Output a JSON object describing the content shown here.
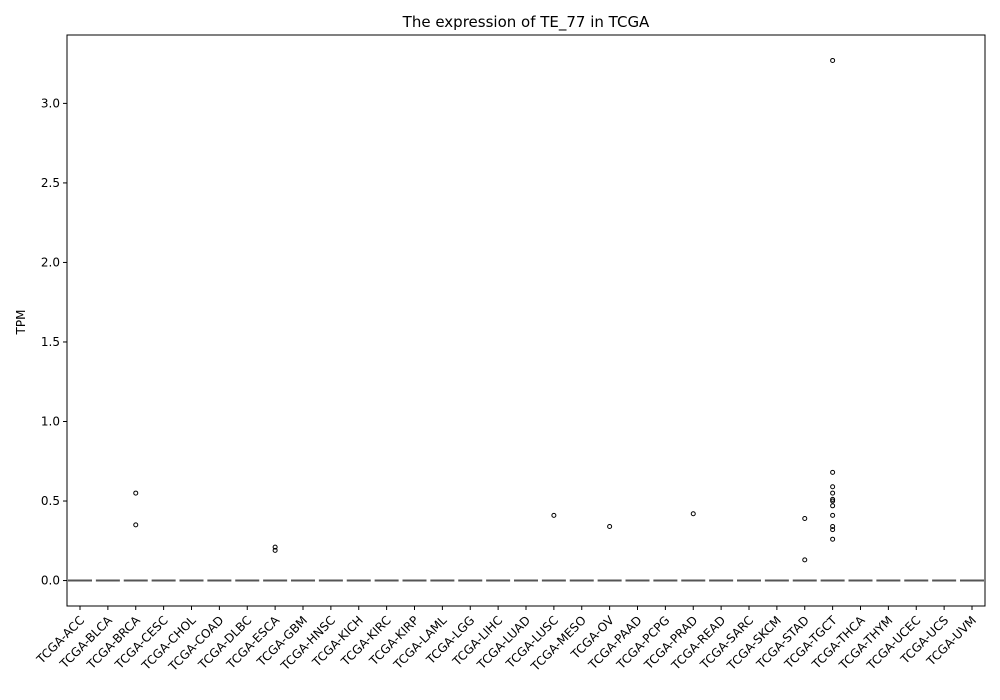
{
  "chart_data": {
    "type": "box",
    "title": "The expression of TE_77 in TCGA",
    "xlabel": "",
    "ylabel": "TPM",
    "ylim": [
      -0.16,
      3.43
    ],
    "yticks": [
      0.0,
      0.5,
      1.0,
      1.5,
      2.0,
      2.5,
      3.0
    ],
    "ytick_labels": [
      "0.0",
      "0.5",
      "1.0",
      "1.5",
      "2.0",
      "2.5",
      "3.0"
    ],
    "grid": false,
    "categories": [
      "TCGA-ACC",
      "TCGA-BLCA",
      "TCGA-BRCA",
      "TCGA-CESC",
      "TCGA-CHOL",
      "TCGA-COAD",
      "TCGA-DLBC",
      "TCGA-ESCA",
      "TCGA-GBM",
      "TCGA-HNSC",
      "TCGA-KICH",
      "TCGA-KIRC",
      "TCGA-KIRP",
      "TCGA-LAML",
      "TCGA-LGG",
      "TCGA-LIHC",
      "TCGA-LUAD",
      "TCGA-LUSC",
      "TCGA-MESO",
      "TCGA-OV",
      "TCGA-PAAD",
      "TCGA-PCPG",
      "TCGA-PRAD",
      "TCGA-READ",
      "TCGA-SARC",
      "TCGA-SKCM",
      "TCGA-STAD",
      "TCGA-TGCT",
      "TCGA-THCA",
      "TCGA-THYM",
      "TCGA-UCEC",
      "TCGA-UCS",
      "TCGA-UVM"
    ],
    "median": [
      0,
      0,
      0,
      0,
      0,
      0,
      0,
      0,
      0,
      0,
      0,
      0,
      0,
      0,
      0,
      0,
      0,
      0,
      0,
      0,
      0,
      0,
      0,
      0,
      0,
      0,
      0,
      0,
      0,
      0,
      0,
      0,
      0
    ],
    "outliers": [
      [],
      [],
      [
        0.55,
        0.35
      ],
      [],
      [],
      [],
      [],
      [
        0.21,
        0.19
      ],
      [],
      [],
      [],
      [],
      [],
      [],
      [],
      [],
      [],
      [
        0.41
      ],
      [],
      [
        0.34
      ],
      [],
      [],
      [
        0.42
      ],
      [],
      [],
      [],
      [
        0.39,
        0.13
      ],
      [
        3.27,
        0.68,
        0.59,
        0.55,
        0.51,
        0.5,
        0.47,
        0.41,
        0.34,
        0.32,
        0.26
      ],
      [],
      [],
      [],
      [],
      []
    ],
    "colors": {
      "median": "#555555",
      "outlier": "#000000",
      "axes": "#000000"
    }
  }
}
